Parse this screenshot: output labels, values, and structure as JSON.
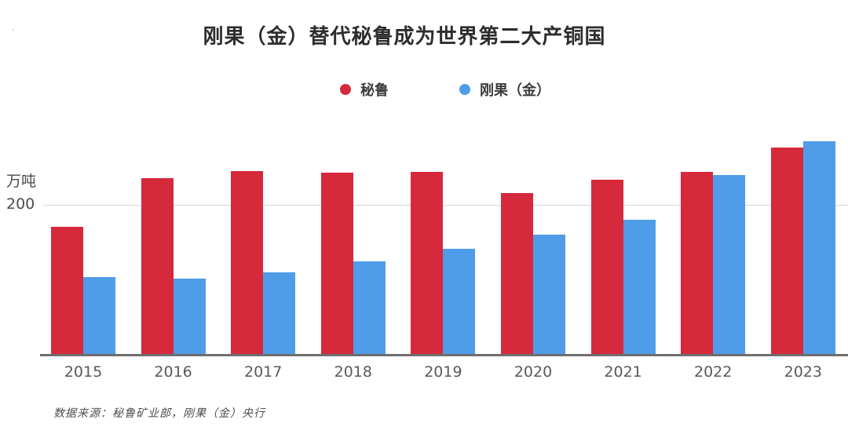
{
  "artifact_dot": ".",
  "title": "刚果（金）替代秘鲁成为世界第二大产铜国",
  "legend": {
    "items": [
      {
        "id": "peru",
        "label": "秘鲁",
        "color": "#d6293c"
      },
      {
        "id": "congo-drc",
        "label": "刚果（金）",
        "color": "#4f9de8"
      }
    ]
  },
  "y_axis": {
    "unit_label": "万吨",
    "tick_label": "200",
    "tick_value": 200
  },
  "x_axis": {
    "labels": [
      "2015",
      "2016",
      "2017",
      "2018",
      "2019",
      "2020",
      "2021",
      "2022",
      "2023"
    ]
  },
  "source_note": "数据来源：秘鲁矿业部，刚果（金）央行",
  "colors": {
    "peru_red": "#d6293c",
    "congo_blue": "#4f9de8",
    "gridline": "#d8d8d8",
    "axis_line": "#6e6e6e"
  },
  "chart_data": {
    "type": "bar",
    "title": "刚果（金）替代秘鲁成为世界第二大产铜国",
    "categories": [
      "2015",
      "2016",
      "2017",
      "2018",
      "2019",
      "2020",
      "2021",
      "2022",
      "2023"
    ],
    "series": [
      {
        "id": "peru",
        "name": "秘鲁",
        "color": "#d6293c",
        "values": [
          170,
          235,
          245,
          243,
          244,
          215,
          233,
          244,
          276
        ]
      },
      {
        "id": "congo-drc",
        "name": "刚果（金）",
        "color": "#4f9de8",
        "values": [
          103,
          101,
          109,
          124,
          141,
          160,
          180,
          239,
          285
        ]
      }
    ],
    "ylabel": "万吨",
    "ylim": [
      0,
      305
    ],
    "yticks": [
      200
    ],
    "grid": true,
    "legend_position": "top-center"
  }
}
